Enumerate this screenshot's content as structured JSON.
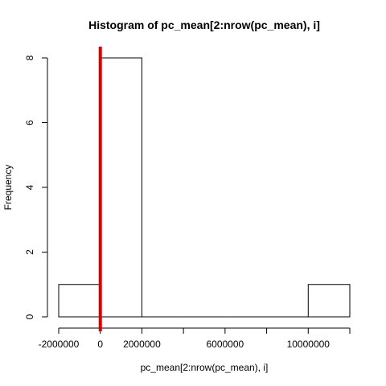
{
  "chart_data": {
    "type": "bar",
    "title": "Histogram of pc_mean[2:nrow(pc_mean), i]",
    "xlabel": "pc_mean[2:nrow(pc_mean), i]",
    "ylabel": "Frequency",
    "bins": [
      {
        "x0": -2000000,
        "x1": 0,
        "count": 1
      },
      {
        "x0": 0,
        "x1": 2000000,
        "count": 8
      },
      {
        "x0": 2000000,
        "x1": 4000000,
        "count": 0
      },
      {
        "x0": 4000000,
        "x1": 6000000,
        "count": 0
      },
      {
        "x0": 6000000,
        "x1": 8000000,
        "count": 0
      },
      {
        "x0": 8000000,
        "x1": 10000000,
        "count": 0
      },
      {
        "x0": 10000000,
        "x1": 12000000,
        "count": 1
      }
    ],
    "xlim": [
      -2000000,
      12000000
    ],
    "ylim": [
      0,
      8
    ],
    "x_ticks": [
      -2000000,
      0,
      2000000,
      4000000,
      6000000,
      8000000,
      10000000,
      12000000
    ],
    "x_tick_labels": [
      {
        "value": -2000000,
        "label": "-2000000"
      },
      {
        "value": 0,
        "label": "0"
      },
      {
        "value": 2000000,
        "label": "2000000"
      },
      {
        "value": 6000000,
        "label": "6000000"
      },
      {
        "value": 10000000,
        "label": "10000000"
      }
    ],
    "y_ticks": [
      0,
      2,
      4,
      6,
      8
    ],
    "y_tick_labels": [
      "0",
      "2",
      "4",
      "6",
      "8"
    ],
    "reference_line": {
      "x": 0,
      "color": "#dd0000"
    },
    "grid": false,
    "legend": "none"
  }
}
